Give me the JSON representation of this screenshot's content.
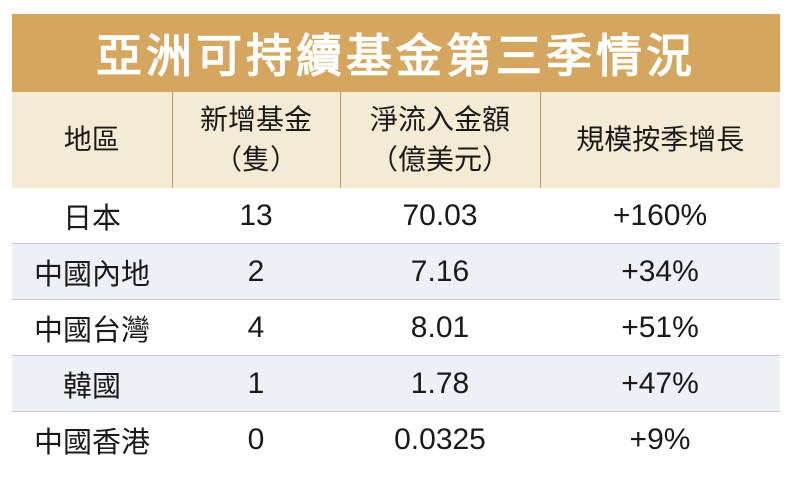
{
  "title": "亞洲可持續基金第三季情況",
  "headers": [
    {
      "line1": "地區",
      "line2": ""
    },
    {
      "line1": "新增基金",
      "line2": "（隻）"
    },
    {
      "line1": "淨流入金額",
      "line2": "（億美元）"
    },
    {
      "line1": "規模按季增長",
      "line2": ""
    }
  ],
  "rows": [
    {
      "region": "日本",
      "new_funds": "13",
      "net_inflow": "70.03",
      "growth": "+160%"
    },
    {
      "region": "中國內地",
      "new_funds": "2",
      "net_inflow": "7.16",
      "growth": "+34%"
    },
    {
      "region": "中國台灣",
      "new_funds": "4",
      "net_inflow": "8.01",
      "growth": "+51%"
    },
    {
      "region": "韓國",
      "new_funds": "1",
      "net_inflow": "1.78",
      "growth": "+47%"
    },
    {
      "region": "中國香港",
      "new_funds": "0",
      "net_inflow": "0.0325",
      "growth": "+9%"
    }
  ],
  "colors": {
    "title_bg": "#d4a660",
    "header_bg": "#f5ead3",
    "alt_row_bg": "#eff0f6"
  }
}
